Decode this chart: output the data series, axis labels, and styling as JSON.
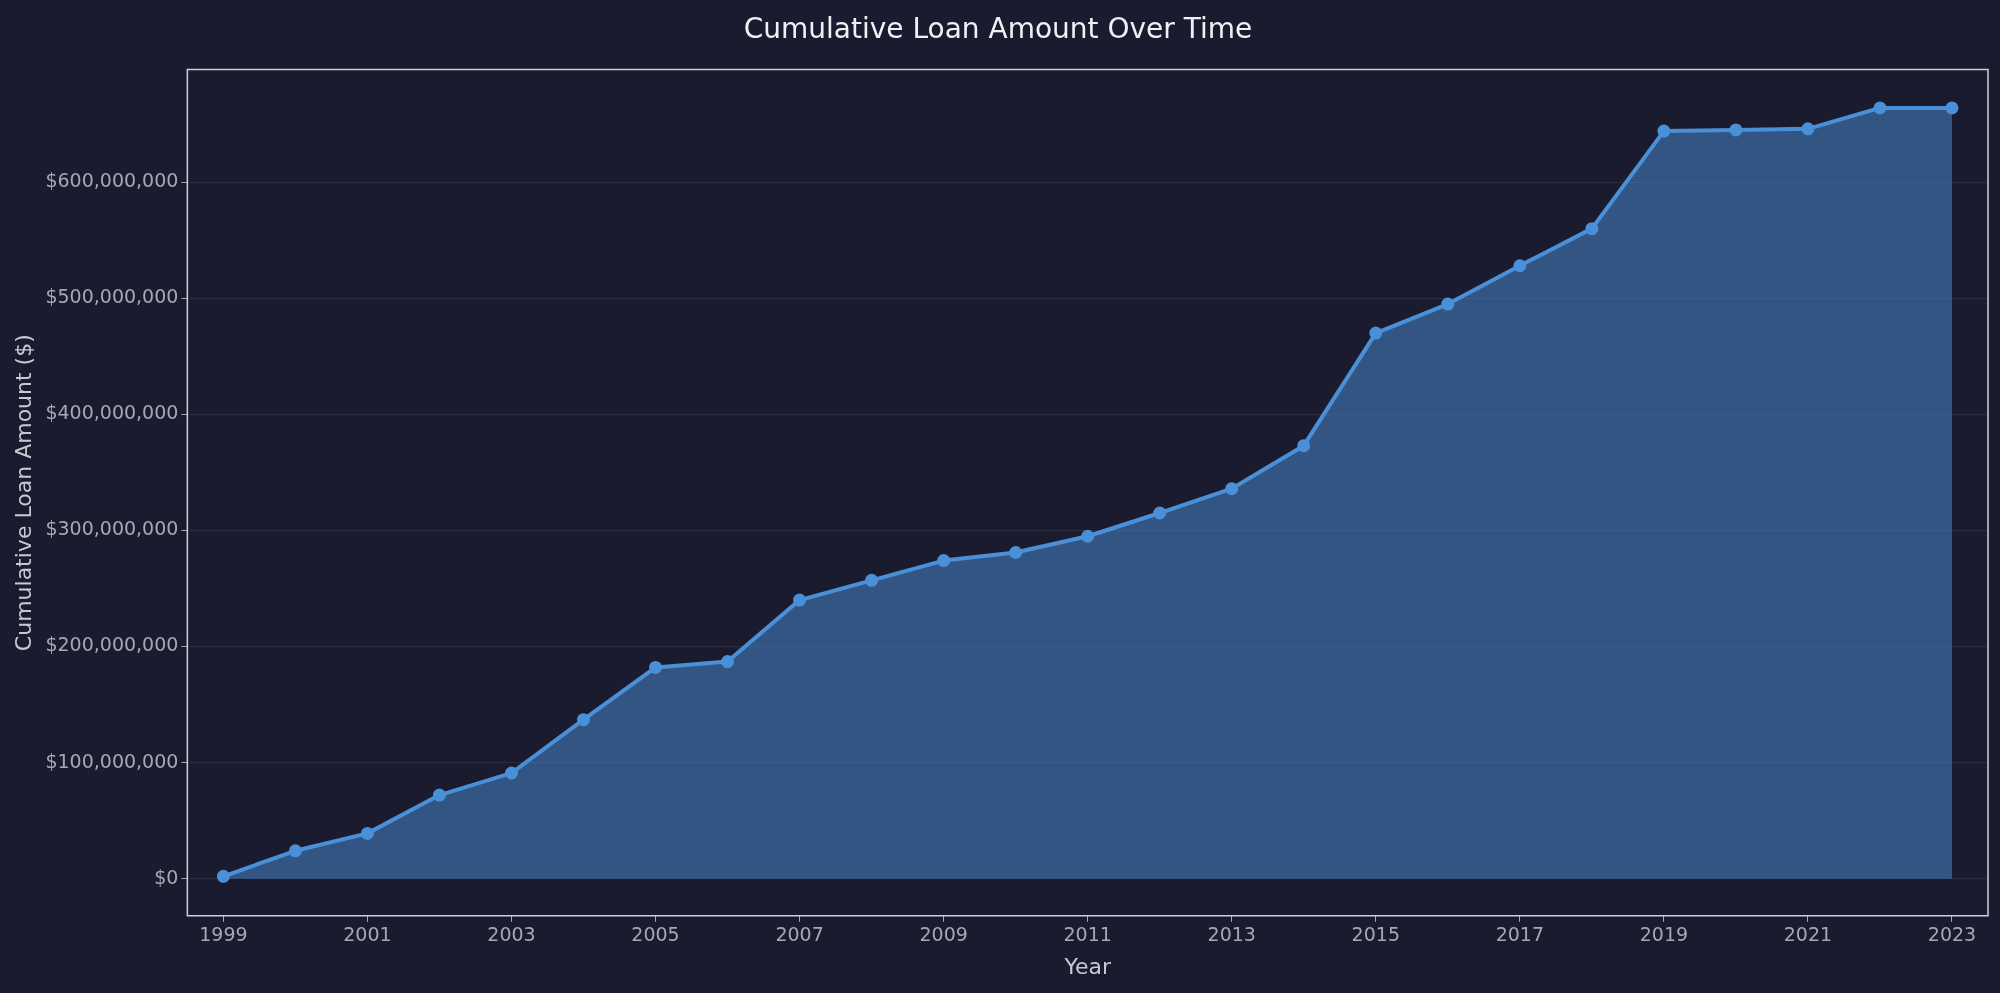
{
  "chart_data": {
    "type": "area",
    "title": "Cumulative Loan Amount Over Time",
    "xlabel": "Year",
    "ylabel": "Cumulative Loan Amount ($)",
    "x": [
      1999,
      2000,
      2001,
      2002,
      2003,
      2004,
      2005,
      2006,
      2007,
      2008,
      2009,
      2010,
      2011,
      2012,
      2013,
      2014,
      2015,
      2016,
      2017,
      2018,
      2019,
      2020,
      2021,
      2022,
      2023
    ],
    "series": [
      {
        "color": "#4a90d9",
        "values": [
          2000000,
          24000000,
          39000000,
          72000000,
          91000000,
          137000000,
          182000000,
          187000000,
          240000000,
          257000000,
          274000000,
          281000000,
          295000000,
          315000000,
          336000000,
          373000000,
          470000000,
          495000000,
          528000000,
          560000000,
          644000000,
          645000000,
          646000000,
          664000000,
          664000000
        ]
      }
    ],
    "xlim": [
      1998.5,
      2023.5
    ],
    "xticks": [
      1999,
      2001,
      2003,
      2005,
      2007,
      2009,
      2011,
      2013,
      2015,
      2017,
      2019,
      2021,
      2023
    ],
    "ylim": [
      -32000000,
      697000000
    ],
    "yticks": [
      {
        "value": 0,
        "label": "$0"
      },
      {
        "value": 100000000,
        "label": "$100,000,000"
      },
      {
        "value": 200000000,
        "label": "$200,000,000"
      },
      {
        "value": 300000000,
        "label": "$300,000,000"
      },
      {
        "value": 400000000,
        "label": "$400,000,000"
      },
      {
        "value": 500000000,
        "label": "$500,000,000"
      },
      {
        "value": 600000000,
        "label": "$600,000,000"
      }
    ],
    "grid": "y",
    "marker": "circle",
    "line_style": "solid",
    "legend": false
  }
}
